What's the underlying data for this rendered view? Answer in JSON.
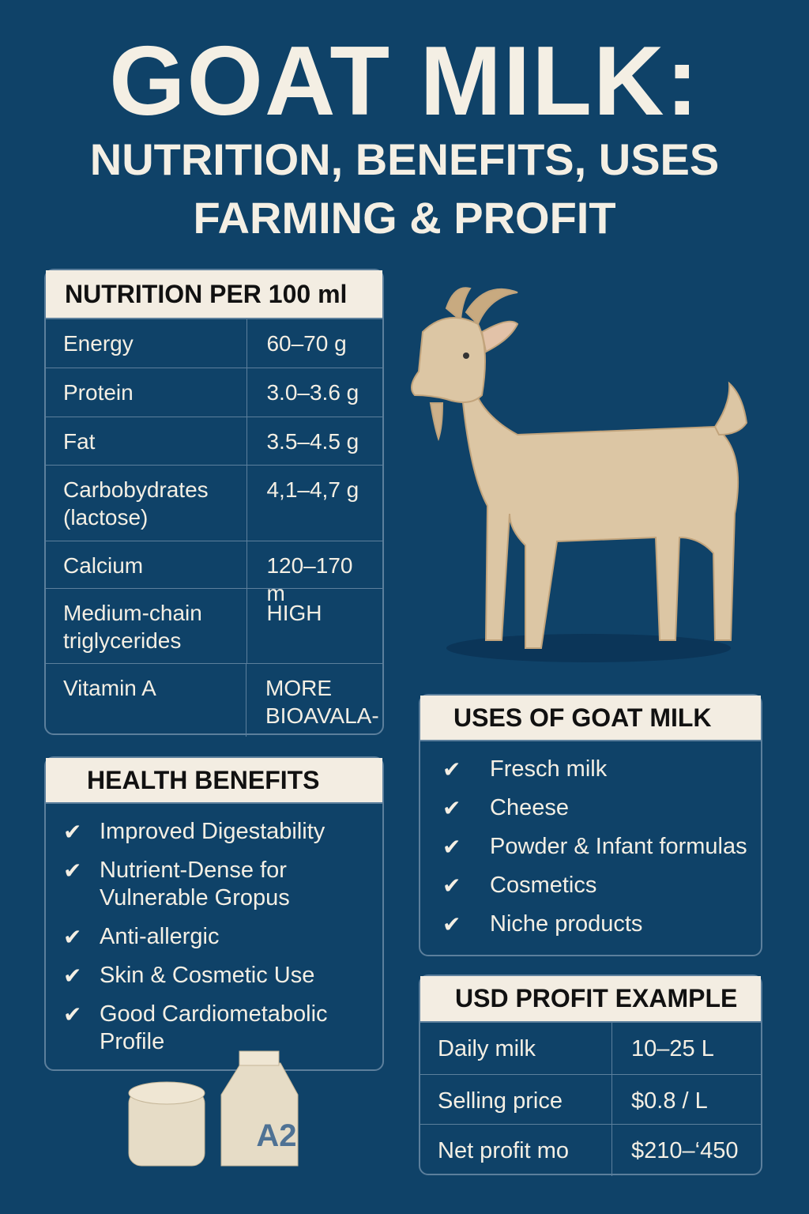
{
  "title": {
    "line1": "GOAT MILK:",
    "line2": "NUTRITION, BENEFITS, USES",
    "line3": "FARMING & PROFIT"
  },
  "nutrition": {
    "header": "NUTRITION PER 100 ml",
    "rows": [
      {
        "label": "Energy",
        "value": "60–70 g"
      },
      {
        "label": "Protein",
        "value": "3.0–3.6 g"
      },
      {
        "label": "Fat",
        "value": "3.5–4.5 g"
      },
      {
        "label": "Carbobydrates (lactose)",
        "value": "4,1–4,7 g"
      },
      {
        "label": "Calcium",
        "value": "120–170 m"
      },
      {
        "label": "Medium-chain triglycerides",
        "value": "HIGH"
      },
      {
        "label": "Vitamin A",
        "value": "MORE BIOAVALA-"
      }
    ]
  },
  "health": {
    "header": "HEALTH BENEFITS",
    "items": [
      "Improved Digestability",
      "Nutrient-Dense for Vulnerable Gropus",
      "Anti-allergic",
      "Skin & Cosmetic Use",
      "Good Cardiometabolic Profile"
    ]
  },
  "uses": {
    "header": "USES OF GOAT MILK",
    "items": [
      "Fresch milk",
      "Cheese",
      "Powder & Infant formulas",
      "Cosmetics",
      "Niche products"
    ]
  },
  "profit": {
    "header": "USD PROFIT EXAMPLE",
    "rows": [
      {
        "label": "Daily milk",
        "value": "10–25 L"
      },
      {
        "label": "Selling price",
        "value": "$0.8 / L"
      },
      {
        "label": "Net profit mo",
        "value": "$210–‘450"
      }
    ]
  },
  "carton_label": "A2",
  "icons": {
    "check": "check-icon"
  },
  "colors": {
    "background": "#0f4268",
    "cream": "#f3ede2",
    "goat": "#dcc6a4"
  }
}
